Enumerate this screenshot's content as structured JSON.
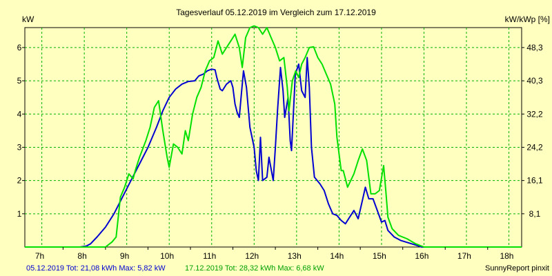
{
  "chart_data": {
    "type": "line",
    "title": "Tagesverlauf 05.12.2019 im Vergleich zum 17.12.2019",
    "y_left_label": "kW",
    "y_right_label": "kW/kWp [%]",
    "x_ticks": [
      "7h",
      "8h",
      "9h",
      "10h",
      "11h",
      "12h",
      "13h",
      "14h",
      "15h",
      "16h",
      "17h",
      "18h"
    ],
    "x_tick_hours": [
      7,
      8,
      9,
      10,
      11,
      12,
      13,
      14,
      15,
      16,
      17,
      18
    ],
    "xlim": [
      6.6,
      18.3
    ],
    "y_ticks_left": [
      "1",
      "2",
      "3",
      "4",
      "5",
      "6"
    ],
    "y_ticks_left_values": [
      1,
      2,
      3,
      4,
      5,
      6
    ],
    "y_ticks_right": [
      "8,1",
      "16,1",
      "24,2",
      "32,2",
      "40,3",
      "48,3"
    ],
    "ylim": [
      0,
      6.6
    ],
    "grid": true,
    "background_color": "#ffffc0",
    "grid_color": "#00b000",
    "series": [
      {
        "name": "05.12.2019",
        "color": "#0000d0",
        "points": [
          [
            6.6,
            0
          ],
          [
            7.9,
            0
          ],
          [
            8.05,
            0.03
          ],
          [
            8.15,
            0.1
          ],
          [
            8.3,
            0.3
          ],
          [
            8.5,
            0.6
          ],
          [
            8.7,
            1.0
          ],
          [
            8.9,
            1.5
          ],
          [
            9.1,
            2.0
          ],
          [
            9.3,
            2.5
          ],
          [
            9.5,
            3.0
          ],
          [
            9.7,
            3.6
          ],
          [
            9.85,
            4.1
          ],
          [
            10.0,
            4.5
          ],
          [
            10.15,
            4.75
          ],
          [
            10.3,
            4.9
          ],
          [
            10.45,
            4.98
          ],
          [
            10.6,
            5.0
          ],
          [
            10.7,
            5.15
          ],
          [
            10.8,
            5.2
          ],
          [
            10.9,
            5.3
          ],
          [
            11.0,
            5.35
          ],
          [
            11.08,
            5.33
          ],
          [
            11.12,
            5.1
          ],
          [
            11.2,
            4.75
          ],
          [
            11.25,
            4.7
          ],
          [
            11.35,
            4.9
          ],
          [
            11.45,
            5.0
          ],
          [
            11.5,
            4.8
          ],
          [
            11.55,
            4.3
          ],
          [
            11.6,
            4.05
          ],
          [
            11.65,
            3.9
          ],
          [
            11.7,
            4.6
          ],
          [
            11.75,
            5.3
          ],
          [
            11.82,
            4.8
          ],
          [
            11.9,
            3.6
          ],
          [
            12.0,
            3.0
          ],
          [
            12.05,
            2.3
          ],
          [
            12.1,
            2.0
          ],
          [
            12.15,
            3.3
          ],
          [
            12.2,
            2.0
          ],
          [
            12.3,
            2.1
          ],
          [
            12.35,
            2.7
          ],
          [
            12.45,
            2.0
          ],
          [
            12.5,
            3.0
          ],
          [
            12.55,
            4.1
          ],
          [
            12.62,
            5.4
          ],
          [
            12.68,
            4.7
          ],
          [
            12.72,
            3.9
          ],
          [
            12.8,
            4.5
          ],
          [
            12.85,
            3.2
          ],
          [
            12.88,
            2.9
          ],
          [
            12.92,
            3.9
          ],
          [
            12.97,
            5.2
          ],
          [
            13.05,
            5.5
          ],
          [
            13.12,
            4.7
          ],
          [
            13.2,
            4.5
          ],
          [
            13.25,
            5.7
          ],
          [
            13.3,
            4.8
          ],
          [
            13.35,
            3.0
          ],
          [
            13.42,
            2.1
          ],
          [
            13.55,
            1.9
          ],
          [
            13.65,
            1.7
          ],
          [
            13.75,
            1.3
          ],
          [
            13.85,
            1.0
          ],
          [
            13.95,
            0.95
          ],
          [
            14.05,
            0.8
          ],
          [
            14.15,
            0.7
          ],
          [
            14.25,
            0.9
          ],
          [
            14.35,
            1.1
          ],
          [
            14.45,
            0.85
          ],
          [
            14.55,
            1.4
          ],
          [
            14.62,
            1.8
          ],
          [
            14.7,
            1.45
          ],
          [
            14.8,
            1.45
          ],
          [
            14.9,
            1.1
          ],
          [
            15.0,
            0.75
          ],
          [
            15.08,
            0.8
          ],
          [
            15.15,
            0.5
          ],
          [
            15.3,
            0.3
          ],
          [
            15.45,
            0.2
          ],
          [
            15.65,
            0.12
          ],
          [
            15.8,
            0.06
          ],
          [
            15.95,
            0
          ],
          [
            18.3,
            0
          ]
        ]
      },
      {
        "name": "17.12.2019",
        "color": "#00e000",
        "points": [
          [
            6.6,
            0
          ],
          [
            8.5,
            0
          ],
          [
            8.65,
            0.15
          ],
          [
            8.75,
            0.3
          ],
          [
            8.85,
            1.5
          ],
          [
            8.95,
            1.8
          ],
          [
            9.05,
            2.2
          ],
          [
            9.15,
            2.05
          ],
          [
            9.2,
            2.3
          ],
          [
            9.3,
            2.7
          ],
          [
            9.45,
            3.2
          ],
          [
            9.55,
            3.6
          ],
          [
            9.65,
            4.2
          ],
          [
            9.75,
            4.4
          ],
          [
            9.85,
            3.5
          ],
          [
            9.95,
            2.7
          ],
          [
            10.0,
            2.4
          ],
          [
            10.1,
            3.1
          ],
          [
            10.2,
            3.0
          ],
          [
            10.3,
            2.8
          ],
          [
            10.38,
            3.5
          ],
          [
            10.45,
            3.2
          ],
          [
            10.55,
            4.0
          ],
          [
            10.65,
            4.5
          ],
          [
            10.75,
            4.8
          ],
          [
            10.85,
            5.3
          ],
          [
            10.95,
            5.6
          ],
          [
            11.05,
            5.7
          ],
          [
            11.15,
            6.2
          ],
          [
            11.25,
            5.8
          ],
          [
            11.35,
            6.0
          ],
          [
            11.45,
            6.2
          ],
          [
            11.55,
            6.4
          ],
          [
            11.65,
            6.0
          ],
          [
            11.72,
            5.4
          ],
          [
            11.8,
            6.3
          ],
          [
            11.9,
            6.6
          ],
          [
            12.0,
            6.65
          ],
          [
            12.1,
            6.6
          ],
          [
            12.2,
            6.4
          ],
          [
            12.3,
            6.6
          ],
          [
            12.4,
            6.3
          ],
          [
            12.5,
            6.0
          ],
          [
            12.6,
            5.6
          ],
          [
            12.7,
            5.7
          ],
          [
            12.78,
            4.8
          ],
          [
            12.82,
            4.1
          ],
          [
            12.9,
            5.0
          ],
          [
            12.98,
            5.3
          ],
          [
            13.05,
            5.1
          ],
          [
            13.12,
            5.5
          ],
          [
            13.2,
            5.7
          ],
          [
            13.3,
            6.0
          ],
          [
            13.4,
            6.02
          ],
          [
            13.5,
            5.7
          ],
          [
            13.6,
            5.5
          ],
          [
            13.7,
            5.2
          ],
          [
            13.8,
            4.9
          ],
          [
            13.9,
            4.3
          ],
          [
            13.95,
            3.3
          ],
          [
            14.05,
            2.3
          ],
          [
            14.1,
            2.3
          ],
          [
            14.2,
            1.8
          ],
          [
            14.35,
            2.2
          ],
          [
            14.45,
            2.6
          ],
          [
            14.55,
            2.95
          ],
          [
            14.65,
            2.6
          ],
          [
            14.75,
            1.6
          ],
          [
            14.85,
            1.6
          ],
          [
            14.95,
            1.7
          ],
          [
            15.05,
            2.45
          ],
          [
            15.1,
            1.7
          ],
          [
            15.15,
            0.9
          ],
          [
            15.25,
            0.55
          ],
          [
            15.4,
            0.35
          ],
          [
            15.6,
            0.25
          ],
          [
            15.8,
            0.1
          ],
          [
            16.0,
            0
          ],
          [
            18.3,
            0
          ]
        ]
      }
    ]
  },
  "footer": {
    "series1_summary": "05.12.2019 Tot: 21,08 kWh Max: 5,82 kW",
    "series2_summary": "17.12.2019 Tot: 28,32 kWh Max: 6,68 kW",
    "credit": "SunnyReport pinxit"
  }
}
